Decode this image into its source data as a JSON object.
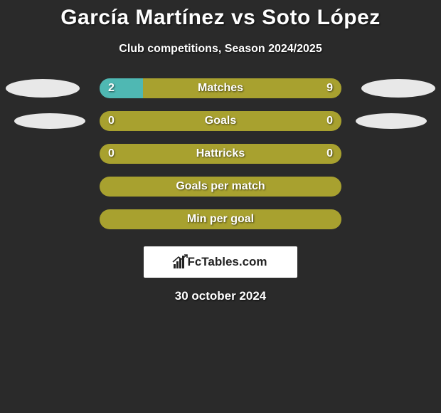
{
  "title": "García Martínez vs Soto López",
  "subtitle": "Club competitions, Season 2024/2025",
  "colors": {
    "olive": "#a8a12f",
    "teal": "#4fb8b3",
    "background": "#2a2a2a",
    "ellipse": "#e8e8e8",
    "white": "#ffffff",
    "logo_text": "#222222"
  },
  "rows": [
    {
      "label": "Matches",
      "left_value": "2",
      "right_value": "9",
      "left_pct": 18,
      "left_color": "#4fb8b3",
      "right_color": "#a8a12f",
      "show_left_ellipse": true,
      "show_right_ellipse": true,
      "ellipse_size": "large"
    },
    {
      "label": "Goals",
      "left_value": "0",
      "right_value": "0",
      "left_pct": 0,
      "left_color": "#a8a12f",
      "right_color": "#a8a12f",
      "show_left_ellipse": true,
      "show_right_ellipse": true,
      "ellipse_size": "small"
    },
    {
      "label": "Hattricks",
      "left_value": "0",
      "right_value": "0",
      "left_pct": 0,
      "left_color": "#a8a12f",
      "right_color": "#a8a12f",
      "show_left_ellipse": false,
      "show_right_ellipse": false
    },
    {
      "label": "Goals per match",
      "left_value": "",
      "right_value": "",
      "left_pct": 0,
      "left_color": "#a8a12f",
      "right_color": "#a8a12f",
      "show_left_ellipse": false,
      "show_right_ellipse": false
    },
    {
      "label": "Min per goal",
      "left_value": "",
      "right_value": "",
      "left_pct": 0,
      "left_color": "#a8a12f",
      "right_color": "#a8a12f",
      "show_left_ellipse": false,
      "show_right_ellipse": false
    }
  ],
  "logo": {
    "text": "FcTables.com"
  },
  "date": "30 october 2024"
}
